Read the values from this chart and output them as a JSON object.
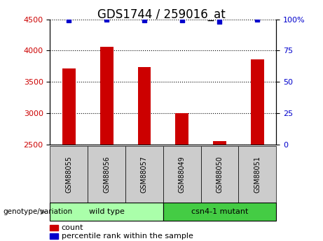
{
  "title": "GDS1744 / 259016_at",
  "samples": [
    "GSM88055",
    "GSM88056",
    "GSM88057",
    "GSM88049",
    "GSM88050",
    "GSM88051"
  ],
  "counts": [
    3720,
    4060,
    3740,
    3000,
    2560,
    3860
  ],
  "percentile_ranks": [
    99,
    100,
    99,
    99,
    98,
    100
  ],
  "ylim_left": [
    2500,
    4500
  ],
  "ylim_right": [
    0,
    100
  ],
  "yticks_left": [
    2500,
    3000,
    3500,
    4000,
    4500
  ],
  "yticks_right": [
    0,
    25,
    50,
    75,
    100
  ],
  "bar_color": "#cc0000",
  "dot_color": "#0000cc",
  "groups": [
    {
      "label": "wild type",
      "indices": [
        0,
        1,
        2
      ],
      "color": "#aaffaa"
    },
    {
      "label": "csn4-1 mutant",
      "indices": [
        3,
        4,
        5
      ],
      "color": "#44cc44"
    }
  ],
  "group_label_prefix": "genotype/variation",
  "legend_count_label": "count",
  "legend_percentile_label": "percentile rank within the sample",
  "title_fontsize": 12,
  "axis_label_color_left": "#cc0000",
  "axis_label_color_right": "#0000cc",
  "sample_box_color": "#cccccc",
  "baseline": 2500
}
